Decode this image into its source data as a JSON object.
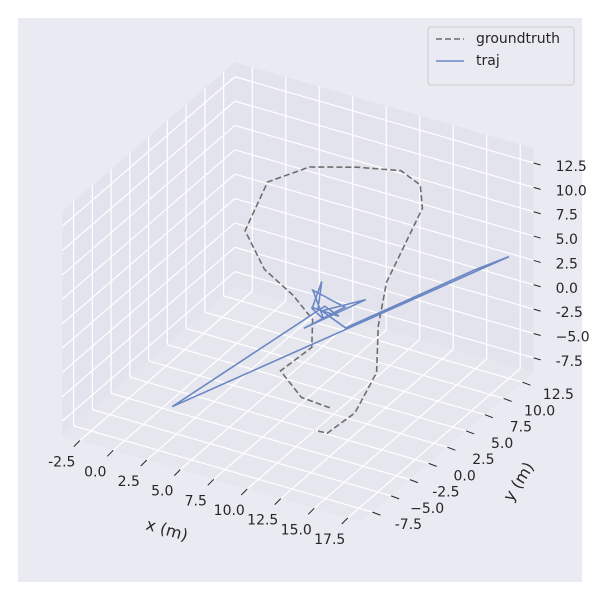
{
  "chart_data": {
    "type": "line3d",
    "xlabel": "x (m)",
    "ylabel": "y (m)",
    "xlim": [
      -3.8,
      18.5
    ],
    "ylim": [
      -9,
      14
    ],
    "zlim": [
      -9,
      14
    ],
    "xticks": [
      -2.5,
      {
        "value": 0,
        "label": "0.0"
      },
      2.5,
      {
        "value": 5,
        "label": "5.0"
      },
      7.5,
      {
        "value": 10,
        "label": "10.0"
      },
      12.5,
      {
        "value": 15,
        "label": "15.0"
      },
      17.5
    ],
    "yticks": [
      -7.5,
      {
        "value": -5,
        "label": "−5.0"
      },
      -2.5,
      {
        "value": 0,
        "label": "0.0"
      },
      2.5,
      {
        "value": 5,
        "label": "5.0"
      },
      7.5,
      {
        "value": 10,
        "label": "10.0"
      },
      12.5
    ],
    "zticks": [
      -7.5,
      {
        "value": -5,
        "label": "−5.0"
      },
      -2.5,
      {
        "value": 0,
        "label": "0.0"
      },
      2.5,
      {
        "value": 5,
        "label": "5.0"
      },
      7.5,
      {
        "value": 10,
        "label": "10.0"
      },
      12.5
    ],
    "grid": true,
    "legend_loc": "upper right",
    "series": [
      {
        "name": "groundtruth",
        "color": "#6e6e6e",
        "dash": true,
        "x": [
          10,
          9,
          8,
          9.5,
          9,
          7,
          4,
          2,
          2,
          4,
          7,
          10,
          12,
          13,
          12.5,
          12,
          12.5,
          13.5,
          13,
          11.5,
          10
        ],
        "y": [
          2,
          0,
          -1,
          0.5,
          1.5,
          2.5,
          4,
          5,
          8,
          10,
          11,
          11.5,
          10.5,
          9,
          7.5,
          6,
          4,
          2,
          0,
          -1,
          0
        ],
        "z": [
          -8,
          -6,
          -3,
          -1,
          1,
          2,
          2.5,
          5,
          8,
          9,
          9.5,
          10,
          10,
          9,
          6,
          3,
          0,
          -3,
          -6,
          -8,
          -9
        ]
      },
      {
        "name": "traj",
        "color": "#6b88c4",
        "dash": false,
        "x": [
          8,
          8,
          7,
          9,
          6.5,
          10,
          7.5,
          11,
          8,
          9.5,
          15.5,
          17.5,
          3,
          8.5,
          9,
          7.5
        ],
        "y": [
          4,
          4.5,
          5,
          3,
          6,
          4,
          3,
          5,
          4.5,
          5,
          11.5,
          12.5,
          -6.5,
          4,
          5,
          4
        ],
        "z": [
          0,
          2.5,
          -1,
          0,
          0,
          1,
          -1.5,
          1.5,
          -0.5,
          -2,
          2,
          3.5,
          -5,
          0.5,
          -1,
          0
        ]
      }
    ]
  }
}
